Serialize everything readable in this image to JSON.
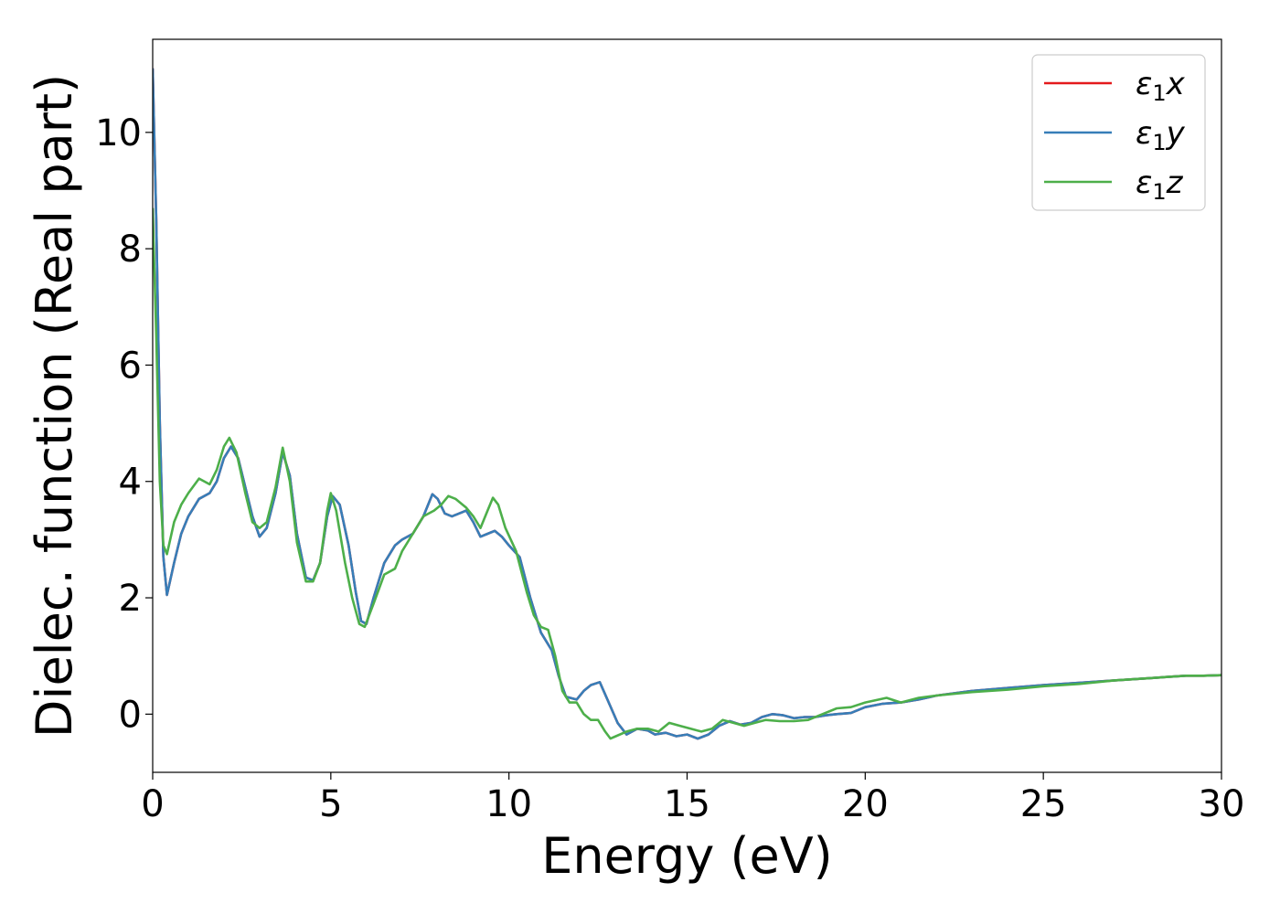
{
  "chart_data": {
    "type": "line",
    "xlabel": "Energy (eV)",
    "ylabel": "Dielec. function (Real part)",
    "xlim": [
      0,
      30
    ],
    "ylim": [
      -1,
      11.6
    ],
    "xticks": [
      0,
      5,
      10,
      15,
      20,
      25,
      30
    ],
    "yticks": [
      0,
      2,
      4,
      6,
      8,
      10
    ],
    "grid": false,
    "legend_position": "top-right",
    "series": [
      {
        "name": "ε₁x",
        "legend_symbol": "ε",
        "legend_sub": "1",
        "legend_var": "x",
        "color": "#e41a1c",
        "points": [
          [
            0,
            11.1
          ],
          [
            0.1,
            8.5
          ],
          [
            0.2,
            5.0
          ],
          [
            0.3,
            2.7
          ],
          [
            0.4,
            2.05
          ],
          [
            0.6,
            2.6
          ],
          [
            0.8,
            3.1
          ],
          [
            1.0,
            3.4
          ],
          [
            1.3,
            3.7
          ],
          [
            1.6,
            3.8
          ],
          [
            1.8,
            4.0
          ],
          [
            2.0,
            4.4
          ],
          [
            2.2,
            4.6
          ],
          [
            2.4,
            4.4
          ],
          [
            2.6,
            3.9
          ],
          [
            2.8,
            3.4
          ],
          [
            3.0,
            3.05
          ],
          [
            3.2,
            3.2
          ],
          [
            3.45,
            3.8
          ],
          [
            3.65,
            4.5
          ],
          [
            3.85,
            4.1
          ],
          [
            4.05,
            3.1
          ],
          [
            4.3,
            2.35
          ],
          [
            4.5,
            2.3
          ],
          [
            4.7,
            2.6
          ],
          [
            4.9,
            3.4
          ],
          [
            5.05,
            3.75
          ],
          [
            5.25,
            3.6
          ],
          [
            5.5,
            2.9
          ],
          [
            5.7,
            2.1
          ],
          [
            5.85,
            1.6
          ],
          [
            6.0,
            1.55
          ],
          [
            6.2,
            2.0
          ],
          [
            6.5,
            2.6
          ],
          [
            6.8,
            2.9
          ],
          [
            7.0,
            3.0
          ],
          [
            7.3,
            3.1
          ],
          [
            7.6,
            3.4
          ],
          [
            7.85,
            3.78
          ],
          [
            8.0,
            3.7
          ],
          [
            8.2,
            3.45
          ],
          [
            8.4,
            3.4
          ],
          [
            8.6,
            3.45
          ],
          [
            8.8,
            3.5
          ],
          [
            9.0,
            3.3
          ],
          [
            9.2,
            3.05
          ],
          [
            9.4,
            3.1
          ],
          [
            9.6,
            3.15
          ],
          [
            9.8,
            3.05
          ],
          [
            10.0,
            2.9
          ],
          [
            10.3,
            2.7
          ],
          [
            10.6,
            2.0
          ],
          [
            10.9,
            1.4
          ],
          [
            11.2,
            1.1
          ],
          [
            11.4,
            0.65
          ],
          [
            11.6,
            0.3
          ],
          [
            11.9,
            0.25
          ],
          [
            12.1,
            0.4
          ],
          [
            12.3,
            0.5
          ],
          [
            12.55,
            0.55
          ],
          [
            12.8,
            0.2
          ],
          [
            13.05,
            -0.15
          ],
          [
            13.3,
            -0.35
          ],
          [
            13.6,
            -0.25
          ],
          [
            13.9,
            -0.28
          ],
          [
            14.1,
            -0.35
          ],
          [
            14.4,
            -0.32
          ],
          [
            14.7,
            -0.38
          ],
          [
            15.0,
            -0.35
          ],
          [
            15.3,
            -0.42
          ],
          [
            15.6,
            -0.35
          ],
          [
            15.9,
            -0.2
          ],
          [
            16.2,
            -0.12
          ],
          [
            16.5,
            -0.18
          ],
          [
            16.8,
            -0.15
          ],
          [
            17.1,
            -0.05
          ],
          [
            17.4,
            0.0
          ],
          [
            17.7,
            -0.02
          ],
          [
            18.0,
            -0.07
          ],
          [
            18.3,
            -0.05
          ],
          [
            18.6,
            -0.05
          ],
          [
            18.9,
            -0.02
          ],
          [
            19.2,
            0.0
          ],
          [
            19.6,
            0.02
          ],
          [
            20.0,
            0.12
          ],
          [
            20.5,
            0.18
          ],
          [
            21.0,
            0.2
          ],
          [
            21.5,
            0.25
          ],
          [
            22.0,
            0.32
          ],
          [
            23.0,
            0.4
          ],
          [
            24.0,
            0.45
          ],
          [
            25.0,
            0.5
          ],
          [
            26.0,
            0.54
          ],
          [
            27.0,
            0.58
          ],
          [
            28.0,
            0.62
          ],
          [
            29.0,
            0.66
          ],
          [
            29.5,
            0.66
          ],
          [
            30.0,
            0.67
          ]
        ]
      },
      {
        "name": "ε₁y",
        "legend_symbol": "ε",
        "legend_sub": "1",
        "legend_var": "y",
        "color": "#377eb8",
        "points": [
          [
            0,
            11.1
          ],
          [
            0.1,
            8.5
          ],
          [
            0.2,
            5.0
          ],
          [
            0.3,
            2.7
          ],
          [
            0.4,
            2.05
          ],
          [
            0.6,
            2.6
          ],
          [
            0.8,
            3.1
          ],
          [
            1.0,
            3.4
          ],
          [
            1.3,
            3.7
          ],
          [
            1.6,
            3.8
          ],
          [
            1.8,
            4.0
          ],
          [
            2.0,
            4.4
          ],
          [
            2.2,
            4.6
          ],
          [
            2.4,
            4.4
          ],
          [
            2.6,
            3.9
          ],
          [
            2.8,
            3.4
          ],
          [
            3.0,
            3.05
          ],
          [
            3.2,
            3.2
          ],
          [
            3.45,
            3.8
          ],
          [
            3.65,
            4.5
          ],
          [
            3.85,
            4.1
          ],
          [
            4.05,
            3.1
          ],
          [
            4.3,
            2.35
          ],
          [
            4.5,
            2.3
          ],
          [
            4.7,
            2.6
          ],
          [
            4.9,
            3.4
          ],
          [
            5.05,
            3.75
          ],
          [
            5.25,
            3.6
          ],
          [
            5.5,
            2.9
          ],
          [
            5.7,
            2.1
          ],
          [
            5.85,
            1.6
          ],
          [
            6.0,
            1.55
          ],
          [
            6.2,
            2.0
          ],
          [
            6.5,
            2.6
          ],
          [
            6.8,
            2.9
          ],
          [
            7.0,
            3.0
          ],
          [
            7.3,
            3.1
          ],
          [
            7.6,
            3.4
          ],
          [
            7.85,
            3.78
          ],
          [
            8.0,
            3.7
          ],
          [
            8.2,
            3.45
          ],
          [
            8.4,
            3.4
          ],
          [
            8.6,
            3.45
          ],
          [
            8.8,
            3.5
          ],
          [
            9.0,
            3.3
          ],
          [
            9.2,
            3.05
          ],
          [
            9.4,
            3.1
          ],
          [
            9.6,
            3.15
          ],
          [
            9.8,
            3.05
          ],
          [
            10.0,
            2.9
          ],
          [
            10.3,
            2.7
          ],
          [
            10.6,
            2.0
          ],
          [
            10.9,
            1.4
          ],
          [
            11.2,
            1.1
          ],
          [
            11.4,
            0.65
          ],
          [
            11.6,
            0.3
          ],
          [
            11.9,
            0.25
          ],
          [
            12.1,
            0.4
          ],
          [
            12.3,
            0.5
          ],
          [
            12.55,
            0.55
          ],
          [
            12.8,
            0.2
          ],
          [
            13.05,
            -0.15
          ],
          [
            13.3,
            -0.35
          ],
          [
            13.6,
            -0.25
          ],
          [
            13.9,
            -0.28
          ],
          [
            14.1,
            -0.35
          ],
          [
            14.4,
            -0.32
          ],
          [
            14.7,
            -0.38
          ],
          [
            15.0,
            -0.35
          ],
          [
            15.3,
            -0.42
          ],
          [
            15.6,
            -0.35
          ],
          [
            15.9,
            -0.2
          ],
          [
            16.2,
            -0.12
          ],
          [
            16.5,
            -0.18
          ],
          [
            16.8,
            -0.15
          ],
          [
            17.1,
            -0.05
          ],
          [
            17.4,
            0.0
          ],
          [
            17.7,
            -0.02
          ],
          [
            18.0,
            -0.07
          ],
          [
            18.3,
            -0.05
          ],
          [
            18.6,
            -0.05
          ],
          [
            18.9,
            -0.02
          ],
          [
            19.2,
            0.0
          ],
          [
            19.6,
            0.02
          ],
          [
            20.0,
            0.12
          ],
          [
            20.5,
            0.18
          ],
          [
            21.0,
            0.2
          ],
          [
            21.5,
            0.25
          ],
          [
            22.0,
            0.32
          ],
          [
            23.0,
            0.4
          ],
          [
            24.0,
            0.45
          ],
          [
            25.0,
            0.5
          ],
          [
            26.0,
            0.54
          ],
          [
            27.0,
            0.58
          ],
          [
            28.0,
            0.62
          ],
          [
            29.0,
            0.66
          ],
          [
            29.5,
            0.66
          ],
          [
            30.0,
            0.67
          ]
        ]
      },
      {
        "name": "ε₁z",
        "legend_symbol": "ε",
        "legend_sub": "1",
        "legend_var": "z",
        "color": "#4daf4a",
        "points": [
          [
            0,
            8.7
          ],
          [
            0.1,
            6.5
          ],
          [
            0.2,
            4.0
          ],
          [
            0.3,
            2.9
          ],
          [
            0.4,
            2.75
          ],
          [
            0.6,
            3.3
          ],
          [
            0.8,
            3.6
          ],
          [
            1.0,
            3.8
          ],
          [
            1.3,
            4.05
          ],
          [
            1.6,
            3.95
          ],
          [
            1.8,
            4.2
          ],
          [
            2.0,
            4.6
          ],
          [
            2.15,
            4.75
          ],
          [
            2.35,
            4.5
          ],
          [
            2.6,
            3.8
          ],
          [
            2.8,
            3.3
          ],
          [
            3.0,
            3.2
          ],
          [
            3.2,
            3.3
          ],
          [
            3.45,
            3.9
          ],
          [
            3.65,
            4.58
          ],
          [
            3.85,
            4.0
          ],
          [
            4.05,
            2.95
          ],
          [
            4.3,
            2.28
          ],
          [
            4.5,
            2.28
          ],
          [
            4.7,
            2.6
          ],
          [
            4.9,
            3.5
          ],
          [
            5.0,
            3.8
          ],
          [
            5.15,
            3.5
          ],
          [
            5.4,
            2.6
          ],
          [
            5.6,
            2.0
          ],
          [
            5.8,
            1.55
          ],
          [
            5.95,
            1.5
          ],
          [
            6.2,
            1.9
          ],
          [
            6.5,
            2.4
          ],
          [
            6.8,
            2.5
          ],
          [
            7.0,
            2.8
          ],
          [
            7.3,
            3.1
          ],
          [
            7.6,
            3.4
          ],
          [
            7.9,
            3.5
          ],
          [
            8.1,
            3.6
          ],
          [
            8.3,
            3.75
          ],
          [
            8.5,
            3.7
          ],
          [
            8.8,
            3.55
          ],
          [
            9.0,
            3.4
          ],
          [
            9.2,
            3.2
          ],
          [
            9.4,
            3.5
          ],
          [
            9.55,
            3.72
          ],
          [
            9.7,
            3.6
          ],
          [
            9.9,
            3.2
          ],
          [
            10.2,
            2.8
          ],
          [
            10.5,
            2.1
          ],
          [
            10.7,
            1.7
          ],
          [
            10.9,
            1.5
          ],
          [
            11.1,
            1.45
          ],
          [
            11.3,
            1.0
          ],
          [
            11.5,
            0.4
          ],
          [
            11.7,
            0.2
          ],
          [
            11.9,
            0.2
          ],
          [
            12.1,
            0.0
          ],
          [
            12.3,
            -0.1
          ],
          [
            12.5,
            -0.1
          ],
          [
            12.7,
            -0.3
          ],
          [
            12.85,
            -0.42
          ],
          [
            13.0,
            -0.38
          ],
          [
            13.3,
            -0.3
          ],
          [
            13.6,
            -0.25
          ],
          [
            13.9,
            -0.25
          ],
          [
            14.2,
            -0.3
          ],
          [
            14.5,
            -0.15
          ],
          [
            14.8,
            -0.2
          ],
          [
            15.1,
            -0.25
          ],
          [
            15.4,
            -0.3
          ],
          [
            15.7,
            -0.25
          ],
          [
            16.0,
            -0.1
          ],
          [
            16.3,
            -0.15
          ],
          [
            16.6,
            -0.2
          ],
          [
            16.9,
            -0.15
          ],
          [
            17.2,
            -0.1
          ],
          [
            17.6,
            -0.12
          ],
          [
            18.0,
            -0.12
          ],
          [
            18.4,
            -0.1
          ],
          [
            18.8,
            0.0
          ],
          [
            19.2,
            0.1
          ],
          [
            19.6,
            0.12
          ],
          [
            20.0,
            0.2
          ],
          [
            20.6,
            0.28
          ],
          [
            21.0,
            0.2
          ],
          [
            21.5,
            0.28
          ],
          [
            22.0,
            0.32
          ],
          [
            23.0,
            0.38
          ],
          [
            24.0,
            0.42
          ],
          [
            25.0,
            0.48
          ],
          [
            26.0,
            0.52
          ],
          [
            27.0,
            0.58
          ],
          [
            28.0,
            0.62
          ],
          [
            29.0,
            0.66
          ],
          [
            29.5,
            0.66
          ],
          [
            30.0,
            0.67
          ]
        ]
      }
    ]
  }
}
